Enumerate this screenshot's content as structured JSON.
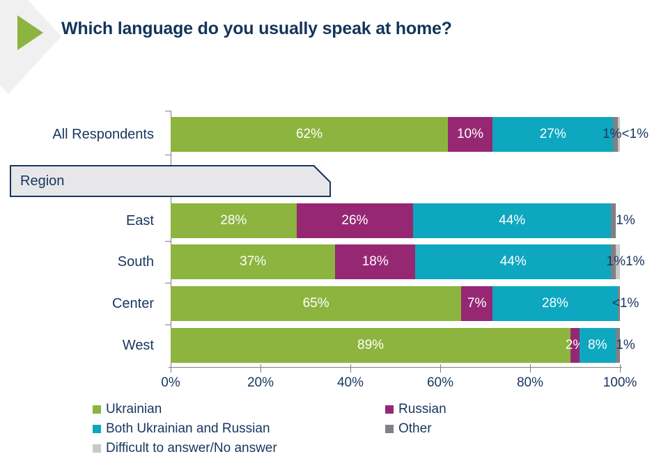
{
  "title": "Which language do you usually speak at home?",
  "region_group_label": "Region",
  "colors": {
    "ukrainian": "#8CB43E",
    "russian": "#962873",
    "both": "#0EA7C0",
    "other": "#808184",
    "difficult": "#C8C9CB",
    "navy_text": "#17365D",
    "axis_line": "#7F7F7F",
    "region_box_fill": "#E7E7E9",
    "region_box_border": "#17365D",
    "header_chevron_gray": "#F0F0F1",
    "header_arrow_green": "#8CB43E",
    "bar_label_white": "#FFFFFF"
  },
  "chart_data": {
    "type": "bar",
    "orientation": "horizontal",
    "stacked": true,
    "title": "Which language do you usually speak at home?",
    "x_axis": {
      "ticks": [
        "0%",
        "20%",
        "40%",
        "60%",
        "80%",
        "100%"
      ],
      "range": [
        0,
        100
      ],
      "grid": false
    },
    "series_names": [
      "Ukrainian",
      "Russian",
      "Both Ukrainian and Russian",
      "Other",
      "Difficult to answer/No answer"
    ],
    "categories": [
      "All Respondents",
      "East",
      "South",
      "Center",
      "West"
    ],
    "rows": [
      {
        "category": "All Respondents",
        "segments": [
          {
            "series": "Ukrainian",
            "key": "ukrainian",
            "value": 62,
            "label": "62%"
          },
          {
            "series": "Russian",
            "key": "russian",
            "value": 10,
            "label": "10%"
          },
          {
            "series": "Both Ukrainian and Russian",
            "key": "both",
            "value": 27,
            "label": "27%"
          },
          {
            "series": "Other",
            "key": "other",
            "value": 1,
            "label": ""
          },
          {
            "series": "Difficult to answer/No answer",
            "key": "difficult",
            "value": 0.5,
            "label": ""
          }
        ],
        "end_label": "1%<1%"
      },
      {
        "category": "East",
        "segments": [
          {
            "series": "Ukrainian",
            "key": "ukrainian",
            "value": 28,
            "label": "28%"
          },
          {
            "series": "Russian",
            "key": "russian",
            "value": 26,
            "label": "26%"
          },
          {
            "series": "Both Ukrainian and Russian",
            "key": "both",
            "value": 44,
            "label": "44%"
          },
          {
            "series": "Other",
            "key": "other",
            "value": 1,
            "label": ""
          }
        ],
        "end_label": "1%"
      },
      {
        "category": "South",
        "segments": [
          {
            "series": "Ukrainian",
            "key": "ukrainian",
            "value": 37,
            "label": "37%"
          },
          {
            "series": "Russian",
            "key": "russian",
            "value": 18,
            "label": "18%"
          },
          {
            "series": "Both Ukrainian and Russian",
            "key": "both",
            "value": 44,
            "label": "44%"
          },
          {
            "series": "Other",
            "key": "other",
            "value": 1,
            "label": ""
          },
          {
            "series": "Difficult to answer/No answer",
            "key": "difficult",
            "value": 1,
            "label": ""
          }
        ],
        "end_label": "1%1%"
      },
      {
        "category": "Center",
        "segments": [
          {
            "series": "Ukrainian",
            "key": "ukrainian",
            "value": 65,
            "label": "65%"
          },
          {
            "series": "Russian",
            "key": "russian",
            "value": 7,
            "label": "7%"
          },
          {
            "series": "Both Ukrainian and Russian",
            "key": "both",
            "value": 28,
            "label": "28%"
          },
          {
            "series": "Other",
            "key": "other",
            "value": 0.5,
            "label": ""
          }
        ],
        "end_label": "<1%"
      },
      {
        "category": "West",
        "segments": [
          {
            "series": "Ukrainian",
            "key": "ukrainian",
            "value": 89,
            "label": "89%"
          },
          {
            "series": "Russian",
            "key": "russian",
            "value": 2,
            "label": "2%"
          },
          {
            "series": "Both Ukrainian and Russian",
            "key": "both",
            "value": 8,
            "label": "8%"
          },
          {
            "series": "Other",
            "key": "other",
            "value": 1,
            "label": ""
          }
        ],
        "end_label": "1%"
      }
    ]
  },
  "legend": [
    {
      "label": "Ukrainian",
      "key": "ukrainian"
    },
    {
      "label": "Russian",
      "key": "russian"
    },
    {
      "label": "Both Ukrainian and Russian",
      "key": "both"
    },
    {
      "label": "Other",
      "key": "other"
    },
    {
      "label": "Difficult to answer/No answer",
      "key": "difficult"
    }
  ]
}
